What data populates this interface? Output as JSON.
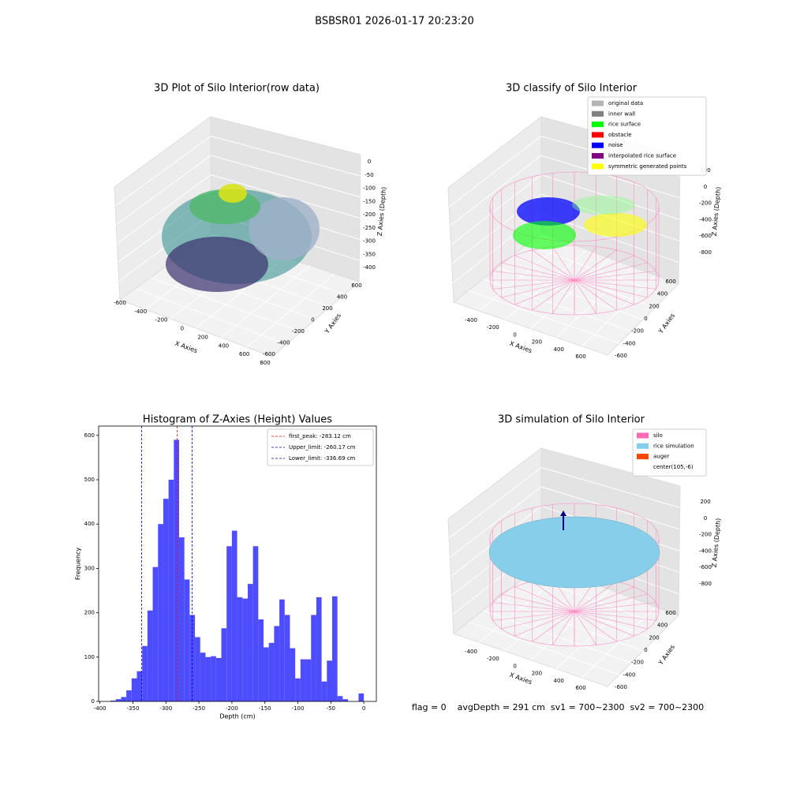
{
  "figure_title": "BSBSR01 2026-01-17 20:23:20",
  "status_text": "flag = 0    avgDepth = 291 cm  sv1 = 700~2300  sv2 = 700~2300",
  "chart_data": [
    {
      "type": "scatter3d",
      "title": "3D Plot of Silo Interior(row data)",
      "xlabel": "X Axies",
      "ylabel": "Y Axies",
      "zlabel": "Z Axies (Depth)",
      "xticks": [
        -600,
        -400,
        -200,
        0,
        200,
        400,
        600,
        800
      ],
      "yticks": [
        -600,
        -400,
        -200,
        0,
        200,
        400,
        600
      ],
      "zticks": [
        0,
        -50,
        -100,
        -150,
        -200,
        -250,
        -300,
        -350,
        -400
      ]
    },
    {
      "type": "scatter3d",
      "title": "3D classify of Silo Interior",
      "xlabel": "X Axies",
      "ylabel": "Y Axies",
      "zlabel": "Z Axies (Depth)",
      "xticks": [
        -400,
        -200,
        0,
        200,
        400,
        600
      ],
      "yticks": [
        -600,
        -400,
        -200,
        0,
        200,
        400,
        600
      ],
      "zticks": [
        200,
        0,
        -200,
        -400,
        -600,
        -800
      ],
      "legend": [
        {
          "name": "original data",
          "color": "#b3b3b3"
        },
        {
          "name": "inner wall",
          "color": "#808080"
        },
        {
          "name": "rice surface",
          "color": "#00ff00"
        },
        {
          "name": "obstacle",
          "color": "#ff0000"
        },
        {
          "name": "noise",
          "color": "#0000ff"
        },
        {
          "name": "interpolated rice surface",
          "color": "#800080"
        },
        {
          "name": "symmetric generated points",
          "color": "#ffff00"
        }
      ]
    },
    {
      "type": "histogram",
      "title": "Histogram of Z-Axies (Height) Values",
      "xlabel": "Depth (cm)",
      "ylabel": "Frequency",
      "color": "#4d4dff",
      "bins": [
        -384,
        -376,
        -368,
        -360,
        -352,
        -344,
        -336,
        -328,
        -320,
        -312,
        -304,
        -296,
        -288,
        -280,
        -272,
        -264,
        -256,
        -248,
        -240,
        -232,
        -224,
        -216,
        -208,
        -200,
        -192,
        -184,
        -176,
        -168,
        -160,
        -152,
        -144,
        -136,
        -128,
        -120,
        -112,
        -104,
        -96,
        -88,
        -80,
        -72,
        -64,
        -56,
        -48,
        -40,
        -32,
        -24,
        -16,
        -8,
        0
      ],
      "values": [
        2,
        5,
        10,
        25,
        52,
        68,
        125,
        205,
        303,
        400,
        457,
        500,
        590,
        370,
        275,
        195,
        145,
        110,
        100,
        102,
        98,
        165,
        350,
        385,
        235,
        232,
        265,
        350,
        185,
        122,
        132,
        170,
        230,
        195,
        120,
        52,
        95,
        95,
        195,
        235,
        45,
        92,
        237,
        12,
        5,
        0,
        0,
        18
      ],
      "xlim": [
        -402,
        19
      ],
      "ylim": [
        0,
        621
      ],
      "xticks": [
        -400,
        -350,
        -300,
        -250,
        -200,
        -150,
        -100,
        -50,
        0
      ],
      "yticks": [
        0,
        100,
        200,
        300,
        400,
        500,
        600
      ],
      "legend_position": "upper right",
      "lines": [
        {
          "name": "first_peak: -283.12 cm",
          "value": -283.12,
          "color": "#ff0000"
        },
        {
          "name": "Upper_limit: -260.17 cm",
          "value": -260.17,
          "color": "#0000cc"
        },
        {
          "name": "Lower_limit: -336.69 cm",
          "value": -336.69,
          "color": "#0000cc"
        }
      ]
    },
    {
      "type": "surface3d",
      "title": "3D simulation of Silo Interior",
      "xlabel": "X Axies",
      "ylabel": "Y Axies",
      "zlabel": "Z Axies (Depth)",
      "xticks": [
        -400,
        -200,
        0,
        200,
        400,
        600
      ],
      "yticks": [
        -600,
        -400,
        -200,
        0,
        200,
        400,
        600
      ],
      "zticks": [
        200,
        0,
        -200,
        -400,
        -600,
        -800
      ],
      "legend": [
        {
          "name": "silo",
          "color": "#ff69b4"
        },
        {
          "name": "rice simulation",
          "color": "#87ceeb"
        },
        {
          "name": "auger",
          "color": "#ff4500"
        },
        {
          "name": "center(105,-6)",
          "color": "#ffffff"
        }
      ]
    }
  ]
}
